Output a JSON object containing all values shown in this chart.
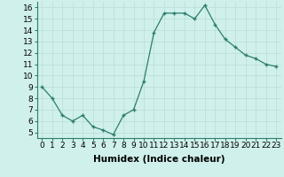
{
  "x": [
    0,
    1,
    2,
    3,
    4,
    5,
    6,
    7,
    8,
    9,
    10,
    11,
    12,
    13,
    14,
    15,
    16,
    17,
    18,
    19,
    20,
    21,
    22,
    23
  ],
  "y": [
    9,
    8,
    6.5,
    6,
    6.5,
    5.5,
    5.2,
    4.8,
    6.5,
    7,
    9.5,
    13.8,
    15.5,
    15.5,
    15.5,
    15,
    16.2,
    14.5,
    13.2,
    12.5,
    11.8,
    11.5,
    11.0,
    10.8
  ],
  "line_color": "#2d7d6e",
  "marker": "+",
  "bg_color": "#d0f0eb",
  "grid_color": "#b8ddd8",
  "xlabel": "Humidex (Indice chaleur)",
  "ylim": [
    4.5,
    16.5
  ],
  "xlim": [
    -0.5,
    23.5
  ],
  "yticks": [
    5,
    6,
    7,
    8,
    9,
    10,
    11,
    12,
    13,
    14,
    15,
    16
  ],
  "xtick_labels": [
    "0",
    "1",
    "2",
    "3",
    "4",
    "5",
    "6",
    "7",
    "8",
    "9",
    "10",
    "11",
    "12",
    "13",
    "14",
    "15",
    "16",
    "17",
    "18",
    "19",
    "20",
    "21",
    "22",
    "23"
  ],
  "xlabel_fontsize": 7.5,
  "tick_fontsize": 6.5
}
